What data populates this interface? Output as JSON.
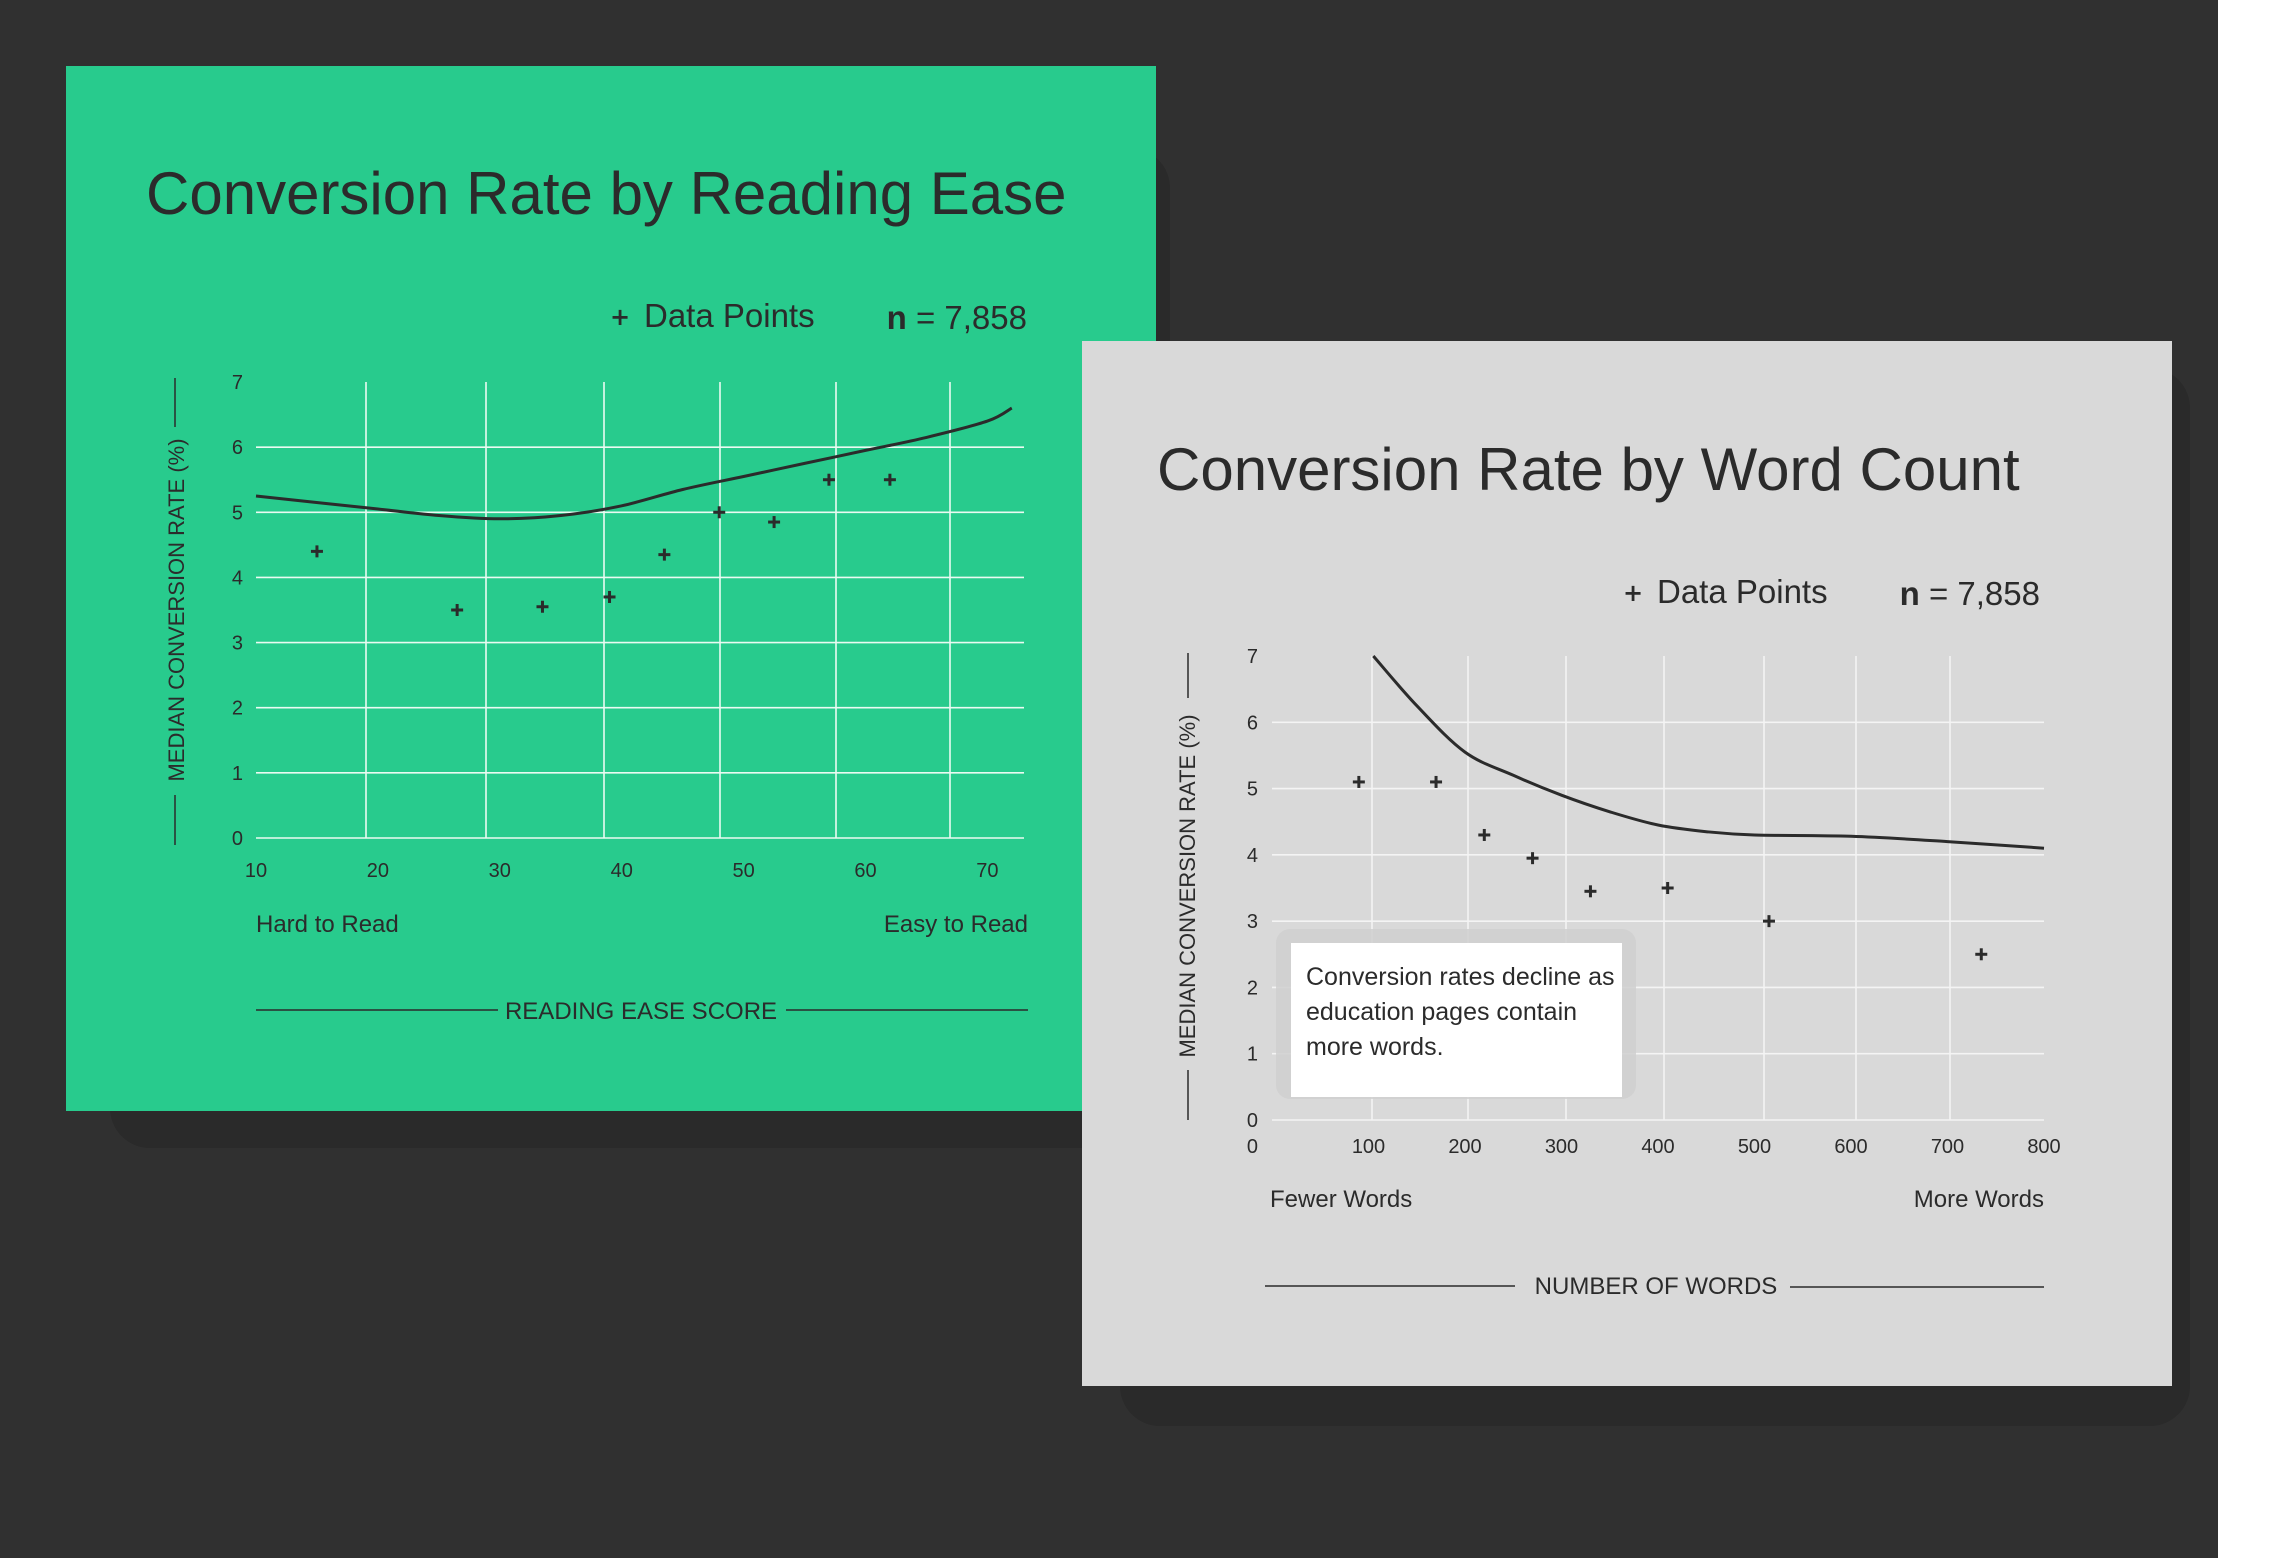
{
  "colors": {
    "background": "#303030",
    "margin": "#ffffff",
    "shadow": "#2a2a2a",
    "card1": "#28cb8d",
    "card2": "#d9d9d9",
    "ink": "#2b2b2b",
    "grid_on_green": "#eafbf2",
    "grid_on_gray": "#f4f4f4"
  },
  "chart_data": [
    {
      "type": "scatter",
      "title": "Conversion Rate by Reading Ease",
      "legend": {
        "marker_label": "Data Points",
        "n_label": "n",
        "n_value": "= 7,858",
        "position": "top-right"
      },
      "ylabel": "MEDIAN CONVERSION RATE (%)",
      "xlabel": "READING EASE SCORE",
      "x_low_label": "Hard to Read",
      "x_high_label": "Easy to Read",
      "xlim": [
        10,
        73
      ],
      "ylim": [
        0,
        7
      ],
      "x_ticks": [
        10,
        20,
        30,
        40,
        50,
        60,
        70
      ],
      "y_ticks": [
        0,
        1,
        2,
        3,
        4,
        5,
        6,
        7
      ],
      "grid": true,
      "points": [
        {
          "x": 15,
          "y": 4.4
        },
        {
          "x": 26.5,
          "y": 3.5
        },
        {
          "x": 33.5,
          "y": 3.55
        },
        {
          "x": 39,
          "y": 3.7
        },
        {
          "x": 43.5,
          "y": 4.35
        },
        {
          "x": 48,
          "y": 5.0
        },
        {
          "x": 52.5,
          "y": 4.85
        },
        {
          "x": 57,
          "y": 5.5
        },
        {
          "x": 62,
          "y": 5.5
        }
      ],
      "trend": [
        {
          "x": 10,
          "y": 5.25
        },
        {
          "x": 20,
          "y": 5.05
        },
        {
          "x": 25,
          "y": 4.95
        },
        {
          "x": 30,
          "y": 4.9
        },
        {
          "x": 35,
          "y": 4.95
        },
        {
          "x": 40,
          "y": 5.1
        },
        {
          "x": 45,
          "y": 5.35
        },
        {
          "x": 50,
          "y": 5.55
        },
        {
          "x": 55,
          "y": 5.75
        },
        {
          "x": 60,
          "y": 5.95
        },
        {
          "x": 65,
          "y": 6.15
        },
        {
          "x": 70,
          "y": 6.4
        },
        {
          "x": 72,
          "y": 6.6
        }
      ]
    },
    {
      "type": "scatter",
      "title": "Conversion Rate by Word Count",
      "legend": {
        "marker_label": "Data Points",
        "n_label": "n",
        "n_value": "= 7,858",
        "position": "top-right"
      },
      "ylabel": "MEDIAN CONVERSION RATE (%)",
      "xlabel": "NUMBER OF WORDS",
      "x_low_label": "Fewer Words",
      "x_high_label": "More Words",
      "xlim": [
        0,
        800
      ],
      "ylim": [
        0,
        7
      ],
      "x_ticks": [
        100,
        200,
        300,
        400,
        500,
        600,
        700,
        800
      ],
      "y_ticks": [
        0,
        1,
        2,
        3,
        4,
        5,
        6,
        7
      ],
      "grid": true,
      "annotation": "Conversion rates decline as education pages contain more words.",
      "points": [
        {
          "x": 90,
          "y": 5.1
        },
        {
          "x": 170,
          "y": 5.1
        },
        {
          "x": 220,
          "y": 4.3
        },
        {
          "x": 270,
          "y": 3.95
        },
        {
          "x": 330,
          "y": 3.45
        },
        {
          "x": 410,
          "y": 3.5
        },
        {
          "x": 515,
          "y": 3.0
        },
        {
          "x": 735,
          "y": 2.5
        }
      ],
      "trend": [
        {
          "x": 105,
          "y": 7.0
        },
        {
          "x": 150,
          "y": 6.25
        },
        {
          "x": 200,
          "y": 5.55
        },
        {
          "x": 250,
          "y": 5.2
        },
        {
          "x": 300,
          "y": 4.9
        },
        {
          "x": 350,
          "y": 4.65
        },
        {
          "x": 400,
          "y": 4.45
        },
        {
          "x": 450,
          "y": 4.35
        },
        {
          "x": 500,
          "y": 4.3
        },
        {
          "x": 600,
          "y": 4.28
        },
        {
          "x": 700,
          "y": 4.2
        },
        {
          "x": 800,
          "y": 4.1
        }
      ]
    }
  ]
}
